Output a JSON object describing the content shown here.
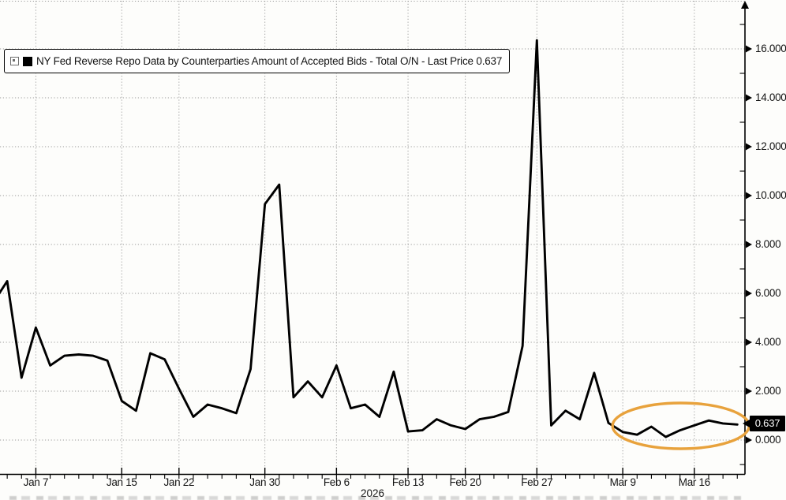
{
  "window": {
    "background_color": "#fdfdfb",
    "year_label": "2026"
  },
  "legend": {
    "expander_icon": "expand-box-icon",
    "series_marker_color": "#000000",
    "series_label": "NY Fed Reverse Repo Data by Counterparties Amount of Accepted Bids - Total O/N - Last Price 0.637"
  },
  "price_badge": {
    "text": "0.637",
    "bg_color": "#000000",
    "text_color": "#ffffff"
  },
  "colors": {
    "line": "#000000",
    "grid": "#9b9b9b",
    "axis": "#000000",
    "highlight_ellipse": "#e8a23c"
  },
  "chart_data": {
    "type": "line",
    "title": "NY Fed Reverse Repo Data by Counterparties Amount of Accepted Bids - Total O/N",
    "last_price": "0.637",
    "x_axis_year": "2026",
    "x_tick_labels": [
      "Jan 7",
      "Jan 15",
      "Jan 22",
      "Jan 30",
      "Feb 6",
      "Feb 13",
      "Feb 20",
      "Feb 27",
      "Mar 9",
      "Mar 16"
    ],
    "y_ticks": [
      0,
      2,
      4,
      6,
      8,
      10,
      12,
      14,
      16
    ],
    "y_tick_labels": [
      "0.000",
      "2.000",
      "4.000",
      "6.000",
      "8.000",
      "10.000",
      "12.000",
      "14.000",
      "16.000"
    ],
    "ylim": [
      -1.4,
      18.0
    ],
    "grid": "dotted",
    "legend_position": "top-left",
    "y_axis_side": "right",
    "series": [
      {
        "name": "NY Fed Reverse Repo Data by Counterparties Amount of Accepted Bids - Total O/N",
        "color": "#000000",
        "points": [
          {
            "date": "Jan 2",
            "value": 5.6
          },
          {
            "date": "Jan 5",
            "value": 6.5
          },
          {
            "date": "Jan 6",
            "value": 2.55
          },
          {
            "date": "Jan 7",
            "value": 4.6
          },
          {
            "date": "Jan 8",
            "value": 3.05
          },
          {
            "date": "Jan 9",
            "value": 3.45
          },
          {
            "date": "Jan 12",
            "value": 3.5
          },
          {
            "date": "Jan 13",
            "value": 3.45
          },
          {
            "date": "Jan 14",
            "value": 3.25
          },
          {
            "date": "Jan 15",
            "value": 1.6
          },
          {
            "date": "Jan 16",
            "value": 1.2
          },
          {
            "date": "Jan 20",
            "value": 3.55
          },
          {
            "date": "Jan 21",
            "value": 3.3
          },
          {
            "date": "Jan 22",
            "value": 2.1
          },
          {
            "date": "Jan 23",
            "value": 0.95
          },
          {
            "date": "Jan 26",
            "value": 1.45
          },
          {
            "date": "Jan 27",
            "value": 1.3
          },
          {
            "date": "Jan 28",
            "value": 1.1
          },
          {
            "date": "Jan 29",
            "value": 2.9
          },
          {
            "date": "Jan 30",
            "value": 9.65
          },
          {
            "date": "Feb 2",
            "value": 10.45
          },
          {
            "date": "Feb 3",
            "value": 1.75
          },
          {
            "date": "Feb 4",
            "value": 2.4
          },
          {
            "date": "Feb 5",
            "value": 1.75
          },
          {
            "date": "Feb 6",
            "value": 3.05
          },
          {
            "date": "Feb 9",
            "value": 1.3
          },
          {
            "date": "Feb 10",
            "value": 1.45
          },
          {
            "date": "Feb 11",
            "value": 0.95
          },
          {
            "date": "Feb 12",
            "value": 2.8
          },
          {
            "date": "Feb 13",
            "value": 0.35
          },
          {
            "date": "Feb 17",
            "value": 0.4
          },
          {
            "date": "Feb 18",
            "value": 0.85
          },
          {
            "date": "Feb 19",
            "value": 0.6
          },
          {
            "date": "Feb 20",
            "value": 0.45
          },
          {
            "date": "Feb 23",
            "value": 0.85
          },
          {
            "date": "Feb 24",
            "value": 0.95
          },
          {
            "date": "Feb 25",
            "value": 1.15
          },
          {
            "date": "Feb 26",
            "value": 3.85
          },
          {
            "date": "Feb 27",
            "value": 16.35
          },
          {
            "date": "Mar 2",
            "value": 0.6
          },
          {
            "date": "Mar 3",
            "value": 1.2
          },
          {
            "date": "Mar 4",
            "value": 0.85
          },
          {
            "date": "Mar 5",
            "value": 2.75
          },
          {
            "date": "Mar 6",
            "value": 0.7
          },
          {
            "date": "Mar 9",
            "value": 0.33
          },
          {
            "date": "Mar 10",
            "value": 0.22
          },
          {
            "date": "Mar 11",
            "value": 0.55
          },
          {
            "date": "Mar 12",
            "value": 0.13
          },
          {
            "date": "Mar 13",
            "value": 0.4
          },
          {
            "date": "Mar 16",
            "value": 0.6
          },
          {
            "date": "Mar 17",
            "value": 0.8
          },
          {
            "date": "Mar 18",
            "value": 0.68
          },
          {
            "date": "Mar 19",
            "value": 0.637
          }
        ]
      }
    ],
    "annotation": {
      "shape": "ellipse",
      "color": "#e8a23c",
      "from_date": "Mar 9",
      "to_date": "Mar 19"
    }
  }
}
